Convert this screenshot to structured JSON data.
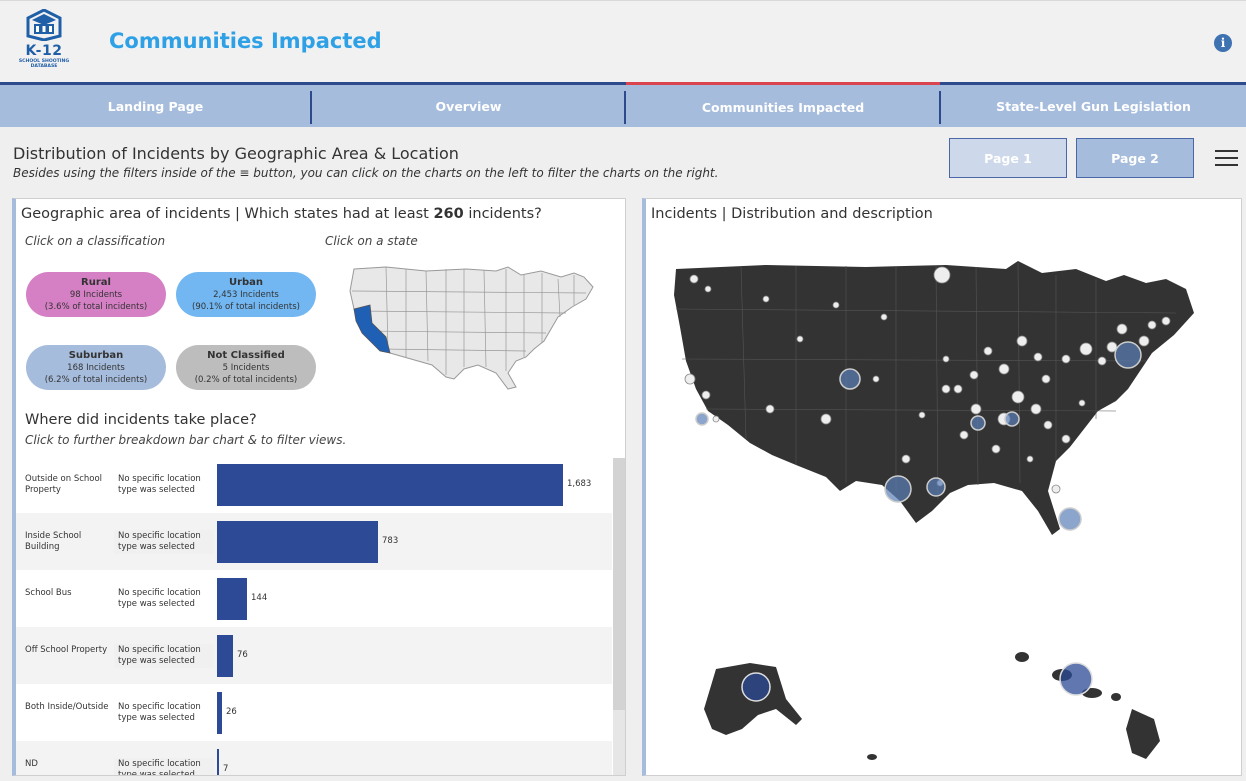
{
  "app": {
    "logo_text": "K-12",
    "logo_sub": "SCHOOL SHOOTING DATABASE",
    "title": "Communities Impacted",
    "info_icon": "info-icon"
  },
  "nav": {
    "tabs": [
      {
        "label": "Landing Page",
        "active": false
      },
      {
        "label": "Overview",
        "active": false
      },
      {
        "label": "Communities Impacted",
        "active": true
      },
      {
        "label": "State-Level Gun Legislation",
        "active": false
      }
    ],
    "accent_active": "#d9444e",
    "nav_bg": "#a6bcdc"
  },
  "section": {
    "title": "Distribution of Incidents by Geographic Area & Location",
    "subtitle": "Besides using the filters inside of the ≡ button, you can click on the charts on the left to filter the charts on the right.",
    "page1": "Page 1",
    "page2": "Page 2"
  },
  "left": {
    "title_prefix": "Geographic area of incidents | Which states had at least ",
    "title_number": "260",
    "title_suffix": " incidents?",
    "hint_classification": "Click on a classification",
    "hint_state": "Click on a state",
    "classes": [
      {
        "name": "Rural",
        "count": "98 Incidents",
        "pct": "(3.6% of total incidents)",
        "color": "#d57fc4"
      },
      {
        "name": "Urban",
        "count": "2,453 Incidents",
        "pct": "(90.1% of total incidents)",
        "color": "#72b7f2"
      },
      {
        "name": "Suburban",
        "count": "168 Incidents",
        "pct": "(6.2% of total incidents)",
        "color": "#a6bcdc"
      },
      {
        "name": "Not Classified",
        "count": "5 Incidents",
        "pct": "(0.2% of total incidents)",
        "color": "#bdbdbd"
      }
    ],
    "where_title": "Where did incidents take place?",
    "where_hint": "Click to further breakdown bar chart & to filter views.",
    "highlighted_state": "California"
  },
  "chart_data": {
    "type": "bar",
    "orientation": "horizontal",
    "categories": [
      "Outside on School Property",
      "Inside School Building",
      "School Bus",
      "Off School Property",
      "Both Inside/Outside",
      "ND"
    ],
    "subcategory": [
      "No specific location type was selected",
      "No specific location type was selected",
      "No specific location type was selected",
      "No specific location type was selected",
      "No specific location type was selected",
      "No specific location type was selected"
    ],
    "values": [
      1683,
      783,
      144,
      76,
      26,
      7
    ],
    "value_labels": [
      "1,683",
      "783",
      "144",
      "76",
      "26",
      "7"
    ],
    "xlim": [
      0,
      1683
    ],
    "bar_color": "#2c4a96"
  },
  "right": {
    "title": "Incidents | Distribution and description",
    "map_color": "#333333"
  }
}
